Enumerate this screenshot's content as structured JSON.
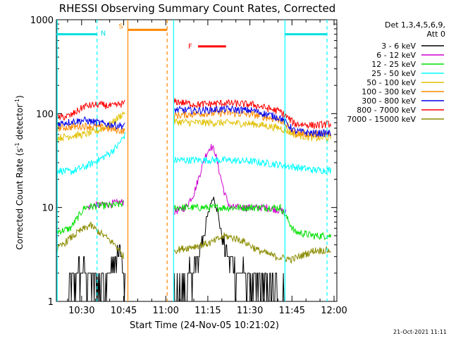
{
  "chart_data": {
    "type": "line",
    "title": "RHESSI Observing Summary Count Rates, Corrected",
    "xlabel": "Start Time (24-Nov-05 10:21:02)",
    "ylabel_main": "Corrected Count Rate (s",
    "ylabel_sup1": "-1",
    "ylabel_mid": " detector",
    "ylabel_sup2": "-1",
    "ylabel_end": ")",
    "y_scale": "log",
    "ylim": [
      1,
      1000
    ],
    "x_unit": "minutes since 10:21",
    "xlim": [
      0,
      100
    ],
    "x_ticks": [
      {
        "v": 9,
        "label": "10:30"
      },
      {
        "v": 24,
        "label": "10:45"
      },
      {
        "v": 39,
        "label": "11:00"
      },
      {
        "v": 54,
        "label": "11:15"
      },
      {
        "v": 69,
        "label": "11:30"
      },
      {
        "v": 84,
        "label": "11:45"
      },
      {
        "v": 99,
        "label": "12:00"
      }
    ],
    "y_ticks": [
      {
        "v": 1,
        "label": "1"
      },
      {
        "v": 10,
        "label": "10"
      },
      {
        "v": 100,
        "label": "100"
      },
      {
        "v": 1000,
        "label": "1000"
      }
    ],
    "legend_title": "Det 1,3,4,5,6,9,",
    "legend_subtitle": "Att 0",
    "legend_position": "right",
    "series": [
      {
        "name": "3 - 6 keV",
        "color": "#000000",
        "points": [
          [
            4,
            1
          ],
          [
            7,
            2
          ],
          [
            10,
            2
          ],
          [
            14,
            1.5
          ],
          [
            19,
            2
          ],
          [
            23,
            3.5
          ],
          [
            24.5,
            1
          ]
        ],
        "points2": [
          [
            42,
            1
          ],
          [
            46,
            1.5
          ],
          [
            50,
            2.5
          ],
          [
            53,
            6
          ],
          [
            55,
            11
          ],
          [
            56,
            13
          ],
          [
            57.5,
            9
          ],
          [
            59,
            5
          ],
          [
            61,
            3
          ],
          [
            64,
            2
          ],
          [
            70,
            1.6
          ],
          [
            76,
            1.2
          ],
          [
            82,
            1
          ]
        ]
      },
      {
        "name": "6 - 12 keV",
        "color": "#d000d0",
        "points": [
          [
            11,
            10
          ],
          [
            14,
            10.5
          ],
          [
            18,
            10.8
          ],
          [
            20,
            11
          ],
          [
            24,
            11.5
          ]
        ],
        "points2": [
          [
            42,
            9
          ],
          [
            46,
            10
          ],
          [
            49,
            14
          ],
          [
            51,
            22
          ],
          [
            53,
            35
          ],
          [
            55,
            45
          ],
          [
            56.5,
            40
          ],
          [
            58,
            25
          ],
          [
            60,
            14
          ],
          [
            62,
            10
          ],
          [
            68,
            10
          ],
          [
            75,
            10
          ],
          [
            82,
            9
          ]
        ]
      },
      {
        "name": "12 - 25 keV",
        "color": "#00e000",
        "points": [
          [
            0,
            5.5
          ],
          [
            5,
            6
          ],
          [
            10,
            10
          ],
          [
            15,
            10.5
          ],
          [
            20,
            10.5
          ],
          [
            24,
            11
          ]
        ],
        "points2": [
          [
            42,
            10
          ],
          [
            50,
            10
          ],
          [
            60,
            10
          ],
          [
            70,
            10
          ],
          [
            80,
            10
          ],
          [
            85,
            5.5
          ],
          [
            92,
            5
          ],
          [
            98,
            5
          ]
        ]
      },
      {
        "name": "25 - 50 keV",
        "color": "#00ffff",
        "points": [
          [
            0,
            25
          ],
          [
            5,
            24
          ],
          [
            10,
            27
          ],
          [
            15,
            32
          ],
          [
            19,
            38
          ],
          [
            22,
            46
          ],
          [
            24.5,
            60
          ]
        ],
        "points2": [
          [
            42,
            32
          ],
          [
            50,
            32
          ],
          [
            60,
            32
          ],
          [
            70,
            31
          ],
          [
            78,
            29
          ],
          [
            85,
            27
          ],
          [
            92,
            25
          ],
          [
            98,
            25
          ]
        ]
      },
      {
        "name": "50 - 100 keV",
        "color": "#e0c000",
        "points": [
          [
            0,
            55
          ],
          [
            5,
            58
          ],
          [
            10,
            60
          ],
          [
            15,
            66
          ],
          [
            20,
            80
          ],
          [
            24.5,
            105
          ]
        ],
        "points2": [
          [
            42,
            82
          ],
          [
            50,
            80
          ],
          [
            60,
            80
          ],
          [
            70,
            78
          ],
          [
            80,
            70
          ],
          [
            85,
            60
          ],
          [
            92,
            55
          ],
          [
            98,
            55
          ]
        ]
      },
      {
        "name": "100 - 300 keV",
        "color": "#ff8800",
        "points": [
          [
            0,
            70
          ],
          [
            5,
            72
          ],
          [
            10,
            74
          ],
          [
            15,
            72
          ],
          [
            20,
            68
          ],
          [
            24.5,
            65
          ]
        ],
        "points2": [
          [
            42,
            95
          ],
          [
            50,
            100
          ],
          [
            60,
            102
          ],
          [
            70,
            98
          ],
          [
            80,
            85
          ],
          [
            85,
            62
          ],
          [
            92,
            60
          ],
          [
            98,
            60
          ]
        ]
      },
      {
        "name": "300 - 800 keV",
        "color": "#0000ee",
        "points": [
          [
            0,
            78
          ],
          [
            5,
            82
          ],
          [
            10,
            85
          ],
          [
            15,
            80
          ],
          [
            20,
            76
          ],
          [
            24.5,
            74
          ]
        ],
        "points2": [
          [
            42,
            110
          ],
          [
            50,
            108
          ],
          [
            60,
            112
          ],
          [
            70,
            108
          ],
          [
            80,
            90
          ],
          [
            85,
            65
          ],
          [
            92,
            62
          ],
          [
            98,
            62
          ]
        ]
      },
      {
        "name": "800 - 7000 keV",
        "color": "#ff0000",
        "points": [
          [
            0,
            90
          ],
          [
            5,
            95
          ],
          [
            10,
            120
          ],
          [
            15,
            125
          ],
          [
            20,
            120
          ],
          [
            24.5,
            130
          ]
        ],
        "points2": [
          [
            42,
            135
          ],
          [
            50,
            125
          ],
          [
            60,
            130
          ],
          [
            70,
            125
          ],
          [
            80,
            105
          ],
          [
            85,
            78
          ],
          [
            92,
            75
          ],
          [
            98,
            78
          ]
        ]
      },
      {
        "name": "7000 - 15000 keV",
        "color": "#8b8b00",
        "points": [
          [
            0,
            3.5
          ],
          [
            4,
            4.5
          ],
          [
            8,
            5.5
          ],
          [
            12,
            6.5
          ],
          [
            17,
            5
          ],
          [
            21,
            4
          ],
          [
            24,
            3
          ]
        ],
        "points2": [
          [
            42,
            3.5
          ],
          [
            48,
            3.8
          ],
          [
            55,
            4.2
          ],
          [
            60,
            5
          ],
          [
            66,
            4.5
          ],
          [
            72,
            3.5
          ],
          [
            78,
            3
          ],
          [
            84,
            2.8
          ],
          [
            92,
            3.5
          ],
          [
            98,
            3.5
          ]
        ]
      }
    ],
    "annotations": [
      {
        "label": "N",
        "color": "#00e0e0",
        "x_start": 0,
        "x_end": 14.5,
        "y": 700
      },
      {
        "label": "S",
        "color": "#ff8800",
        "x_start": 25.5,
        "x_end": 39.5,
        "y": 780
      },
      {
        "label": "F",
        "color": "#ff0000",
        "x_start": 50.5,
        "x_end": 60.5,
        "y": 520
      },
      {
        "label": "",
        "color": "#00e0e0",
        "x_start": 81.5,
        "x_end": 96.5,
        "y": 700
      }
    ],
    "vertical_lines": [
      {
        "x": 0.3,
        "color": "#00ffff",
        "style": "solid"
      },
      {
        "x": 14.5,
        "color": "#00ffff",
        "style": "dashed"
      },
      {
        "x": 25.5,
        "color": "#ff8800",
        "style": "solid"
      },
      {
        "x": 39.5,
        "color": "#ff8800",
        "style": "dashed"
      },
      {
        "x": 41.8,
        "color": "#00ffff",
        "style": "solid"
      },
      {
        "x": 81.5,
        "color": "#00ffff",
        "style": "solid"
      },
      {
        "x": 96.5,
        "color": "#00ffff",
        "style": "dashed"
      }
    ],
    "gap": [
      25,
      42
    ]
  },
  "footer": {
    "date": "21-Oct-2021 11:11"
  }
}
